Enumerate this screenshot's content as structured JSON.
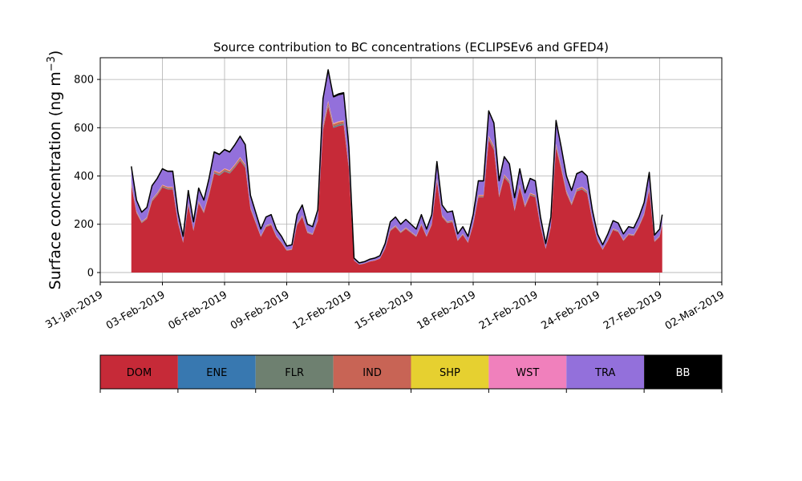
{
  "chart_data": {
    "type": "area",
    "title": "Source contribution to BC concentrations (ECLIPSEv6 and GFED4)",
    "ylabel_main": "Surface concentration (ng m",
    "ylabel_sup": "−3",
    "ylabel_close": ")",
    "xlabel": "",
    "x_start": "2019-02-01T12:00",
    "x_step_hours": 3,
    "xlim": [
      "2019-01-31T00:00",
      "2019-03-02T00:00"
    ],
    "ylim": [
      -40,
      890
    ],
    "yticks": [
      0,
      200,
      400,
      600,
      800
    ],
    "xticks": [
      {
        "date": "2019-01-31",
        "label": "31-Jan-2019"
      },
      {
        "date": "2019-02-03",
        "label": "03-Feb-2019"
      },
      {
        "date": "2019-02-06",
        "label": "06-Feb-2019"
      },
      {
        "date": "2019-02-09",
        "label": "09-Feb-2019"
      },
      {
        "date": "2019-02-12",
        "label": "12-Feb-2019"
      },
      {
        "date": "2019-02-15",
        "label": "15-Feb-2019"
      },
      {
        "date": "2019-02-18",
        "label": "18-Feb-2019"
      },
      {
        "date": "2019-02-21",
        "label": "21-Feb-2019"
      },
      {
        "date": "2019-02-24",
        "label": "24-Feb-2019"
      },
      {
        "date": "2019-02-27",
        "label": "27-Feb-2019"
      },
      {
        "date": "2019-03-02",
        "label": "02-Mar-2019"
      }
    ],
    "grid": true,
    "total_knots": [
      [
        "2019-02-01T12:00",
        440
      ],
      [
        "2019-02-01T18:00",
        300
      ],
      [
        "2019-02-02T00:00",
        250
      ],
      [
        "2019-02-02T06:00",
        270
      ],
      [
        "2019-02-02T12:00",
        360
      ],
      [
        "2019-02-02T18:00",
        390
      ],
      [
        "2019-02-03T00:00",
        430
      ],
      [
        "2019-02-03T06:00",
        420
      ],
      [
        "2019-02-03T12:00",
        420
      ],
      [
        "2019-02-03T18:00",
        250
      ],
      [
        "2019-02-04T00:00",
        150
      ],
      [
        "2019-02-04T06:00",
        340
      ],
      [
        "2019-02-04T12:00",
        210
      ],
      [
        "2019-02-04T18:00",
        350
      ],
      [
        "2019-02-05T00:00",
        300
      ],
      [
        "2019-02-05T06:00",
        390
      ],
      [
        "2019-02-05T12:00",
        500
      ],
      [
        "2019-02-05T18:00",
        490
      ],
      [
        "2019-02-06T00:00",
        510
      ],
      [
        "2019-02-06T06:00",
        500
      ],
      [
        "2019-02-06T12:00",
        530
      ],
      [
        "2019-02-06T18:00",
        565
      ],
      [
        "2019-02-07T00:00",
        530
      ],
      [
        "2019-02-07T06:00",
        320
      ],
      [
        "2019-02-07T12:00",
        250
      ],
      [
        "2019-02-07T18:00",
        180
      ],
      [
        "2019-02-08T00:00",
        230
      ],
      [
        "2019-02-08T06:00",
        240
      ],
      [
        "2019-02-08T12:00",
        180
      ],
      [
        "2019-02-08T18:00",
        150
      ],
      [
        "2019-02-09T00:00",
        110
      ],
      [
        "2019-02-09T06:00",
        115
      ],
      [
        "2019-02-09T12:00",
        240
      ],
      [
        "2019-02-09T18:00",
        280
      ],
      [
        "2019-02-10T00:00",
        200
      ],
      [
        "2019-02-10T06:00",
        190
      ],
      [
        "2019-02-10T12:00",
        260
      ],
      [
        "2019-02-10T18:00",
        720
      ],
      [
        "2019-02-11T00:00",
        840
      ],
      [
        "2019-02-11T06:00",
        730
      ],
      [
        "2019-02-11T12:00",
        740
      ],
      [
        "2019-02-11T18:00",
        745
      ],
      [
        "2019-02-12T00:00",
        520
      ],
      [
        "2019-02-12T06:00",
        60
      ],
      [
        "2019-02-12T12:00",
        40
      ],
      [
        "2019-02-12T18:00",
        45
      ],
      [
        "2019-02-13T00:00",
        55
      ],
      [
        "2019-02-13T06:00",
        60
      ],
      [
        "2019-02-13T12:00",
        70
      ],
      [
        "2019-02-13T18:00",
        120
      ],
      [
        "2019-02-14T00:00",
        210
      ],
      [
        "2019-02-14T06:00",
        230
      ],
      [
        "2019-02-14T12:00",
        200
      ],
      [
        "2019-02-14T18:00",
        220
      ],
      [
        "2019-02-15T00:00",
        200
      ],
      [
        "2019-02-15T06:00",
        180
      ],
      [
        "2019-02-15T12:00",
        240
      ],
      [
        "2019-02-15T18:00",
        180
      ],
      [
        "2019-02-16T00:00",
        240
      ],
      [
        "2019-02-16T06:00",
        460
      ],
      [
        "2019-02-16T12:00",
        280
      ],
      [
        "2019-02-16T18:00",
        250
      ],
      [
        "2019-02-17T00:00",
        255
      ],
      [
        "2019-02-17T06:00",
        160
      ],
      [
        "2019-02-17T12:00",
        190
      ],
      [
        "2019-02-17T18:00",
        150
      ],
      [
        "2019-02-18T00:00",
        240
      ],
      [
        "2019-02-18T06:00",
        380
      ],
      [
        "2019-02-18T12:00",
        380
      ],
      [
        "2019-02-18T18:00",
        670
      ],
      [
        "2019-02-19T00:00",
        620
      ],
      [
        "2019-02-19T06:00",
        380
      ],
      [
        "2019-02-19T12:00",
        480
      ],
      [
        "2019-02-19T18:00",
        450
      ],
      [
        "2019-02-20T00:00",
        310
      ],
      [
        "2019-02-20T06:00",
        430
      ],
      [
        "2019-02-20T12:00",
        330
      ],
      [
        "2019-02-20T18:00",
        390
      ],
      [
        "2019-02-21T00:00",
        380
      ],
      [
        "2019-02-21T06:00",
        230
      ],
      [
        "2019-02-21T12:00",
        120
      ],
      [
        "2019-02-21T18:00",
        230
      ],
      [
        "2019-02-22T00:00",
        630
      ],
      [
        "2019-02-22T06:00",
        520
      ],
      [
        "2019-02-22T12:00",
        400
      ],
      [
        "2019-02-22T18:00",
        340
      ],
      [
        "2019-02-23T00:00",
        410
      ],
      [
        "2019-02-23T06:00",
        420
      ],
      [
        "2019-02-23T12:00",
        400
      ],
      [
        "2019-02-23T18:00",
        260
      ],
      [
        "2019-02-24T00:00",
        160
      ],
      [
        "2019-02-24T06:00",
        115
      ],
      [
        "2019-02-24T12:00",
        160
      ],
      [
        "2019-02-24T18:00",
        215
      ],
      [
        "2019-02-25T00:00",
        205
      ],
      [
        "2019-02-25T06:00",
        160
      ],
      [
        "2019-02-25T12:00",
        190
      ],
      [
        "2019-02-25T18:00",
        185
      ],
      [
        "2019-02-26T00:00",
        230
      ],
      [
        "2019-02-26T06:00",
        290
      ],
      [
        "2019-02-26T12:00",
        415
      ],
      [
        "2019-02-26T18:00",
        155
      ],
      [
        "2019-02-27T00:00",
        180
      ],
      [
        "2019-02-27T03:00",
        240
      ]
    ],
    "legend": {
      "placement": "below",
      "entries": [
        {
          "label": "DOM",
          "color": "#c62a38"
        },
        {
          "label": "ENE",
          "color": "#3878b0"
        },
        {
          "label": "FLR",
          "color": "#6e8070"
        },
        {
          "label": "IND",
          "color": "#c86455"
        },
        {
          "label": "SHP",
          "color": "#e6d030"
        },
        {
          "label": "WST",
          "color": "#f080bc"
        },
        {
          "label": "TRA",
          "color": "#9370db"
        },
        {
          "label": "BB",
          "color": "#000000"
        }
      ]
    }
  }
}
